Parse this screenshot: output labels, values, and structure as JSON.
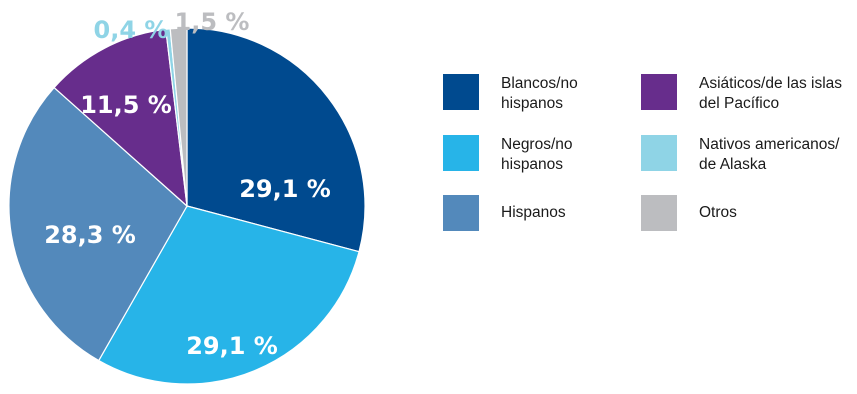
{
  "chart_data": {
    "type": "pie",
    "slices": [
      {
        "name": "Blancos/no\nhispanos",
        "value": 29.1,
        "label": "29,1 %",
        "color": "#004a8f",
        "label_color": "#ffffff"
      },
      {
        "name": "Negros/no\nhispanos",
        "value": 29.1,
        "label": "29,1 %",
        "color": "#27b4e8",
        "label_color": "#ffffff"
      },
      {
        "name": "Hispanos",
        "value": 28.3,
        "label": "28,3 %",
        "color": "#5389bb",
        "label_color": "#ffffff"
      },
      {
        "name": "Asiáticos/de las islas\ndel Pacífico",
        "value": 11.5,
        "label": "11,5 %",
        "color": "#672d8c",
        "label_color": "#ffffff"
      },
      {
        "name": "Nativos americanos/\nde Alaska",
        "value": 0.4,
        "label": "0,4 %",
        "color": "#8fd4e6",
        "label_color": "#8fd4e6"
      },
      {
        "name": "Otros",
        "value": 1.5,
        "label": "1,5 %",
        "color": "#bcbdc0",
        "label_color": "#bcbdc0"
      }
    ],
    "legend_position": "right"
  }
}
